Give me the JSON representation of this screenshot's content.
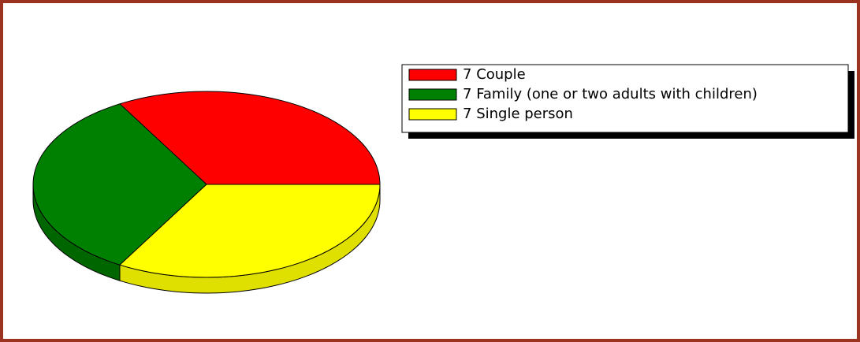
{
  "chart_data": {
    "type": "pie",
    "categories": [
      "Couple",
      "Family (one or two adults with children)",
      "Single person"
    ],
    "values": [
      7,
      7,
      7
    ],
    "colors": [
      "#ff0000",
      "#008000",
      "#ffff00"
    ]
  }
}
